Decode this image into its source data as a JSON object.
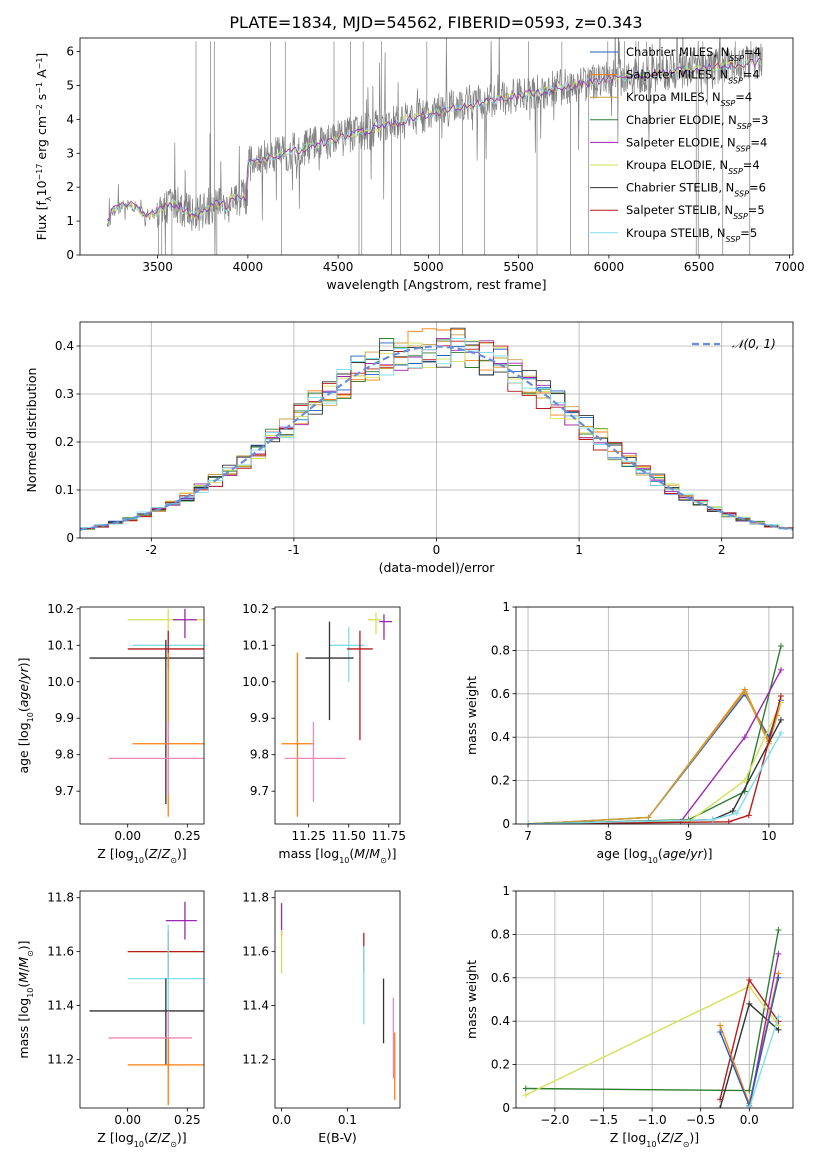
{
  "figure": {
    "title": "PLATE=1834, MJD=54562, FIBERID=0593, z=0.343"
  },
  "series_legend": [
    {
      "name": "Chabrier MILES",
      "nssp": "4",
      "color": "#1f5fbf"
    },
    {
      "name": "Salpeter MILES",
      "nssp": "4",
      "color": "#ff7f0e"
    },
    {
      "name": "Kroupa MILES",
      "nssp": "4",
      "color": "#c8a040"
    },
    {
      "name": "Chabrier ELODIE",
      "nssp": "3",
      "color": "#2e7d32"
    },
    {
      "name": "Salpeter ELODIE",
      "nssp": "4",
      "color": "#9c27b0"
    },
    {
      "name": "Kroupa ELODIE",
      "nssp": "4",
      "color": "#d4e157"
    },
    {
      "name": "Chabrier STELIB",
      "nssp": "6",
      "color": "#333333"
    },
    {
      "name": "Salpeter STELIB",
      "nssp": "5",
      "color": "#b71c1c"
    },
    {
      "name": "Kroupa STELIB",
      "nssp": "5",
      "color": "#80deea"
    }
  ],
  "chart_data": [
    {
      "id": "spectrum",
      "type": "line",
      "xlabel": "wavelength [Angstrom, rest frame]",
      "ylabel": "Flux [f",
      "xlim": [
        3070,
        7020
      ],
      "ylim": [
        0,
        6.4
      ],
      "xticks": [
        3500,
        4000,
        4500,
        5000,
        5500,
        6000,
        6500,
        7000
      ],
      "yticks": [
        0,
        1,
        2,
        3,
        4,
        5,
        6
      ],
      "spectrum_range": [
        3220,
        6850
      ],
      "legend_position": "upper right",
      "grid": false
    },
    {
      "id": "residuals",
      "type": "histogram",
      "xlabel": "(data-model)/error",
      "ylabel": "Normed distribution",
      "xlim": [
        -2.5,
        2.5
      ],
      "ylim": [
        0,
        0.45
      ],
      "xticks": [
        -2,
        -1,
        0,
        1,
        2
      ],
      "yticks": [
        0.0,
        0.1,
        0.2,
        0.3,
        0.4
      ],
      "grid": true,
      "reference_curve": {
        "name": "𝒩(0, 1)",
        "mu": 0,
        "sigma": 1,
        "color": "#6a8fd8"
      },
      "legend_position": "upper right"
    },
    {
      "id": "age_vs_z",
      "type": "errorbar",
      "xlabel": "Z [log",
      "ylabel": "age  [log",
      "xlim": [
        -0.2,
        0.32
      ],
      "ylim": [
        9.61,
        10.205
      ],
      "xticks": [
        0.0,
        0.25
      ],
      "xtick_labels": [
        "0.00",
        "0.25"
      ],
      "yticks": [
        9.7,
        9.8,
        9.9,
        10.0,
        10.1,
        10.2
      ],
      "ytick_labels": [
        "9.7",
        "9.8",
        "9.9",
        "10.0",
        "10.1",
        "10.2"
      ],
      "grid": false,
      "points": [
        {
          "series": "Kroupa ELODIE",
          "x": 0.17,
          "xerr": [
            0.17,
            0.17
          ],
          "y": 10.17,
          "yerr": [
            0.05,
            0.03
          ]
        },
        {
          "series": "Salpeter ELODIE",
          "x": 0.24,
          "xerr": [
            0.05,
            0.05
          ],
          "y": 10.17,
          "yerr": [
            0.05,
            0.03
          ]
        },
        {
          "series": "Kroupa STELIB",
          "x": 0.17,
          "xerr": [
            0.15,
            0.15
          ],
          "y": 10.1,
          "yerr": [
            0.03,
            0.03
          ]
        },
        {
          "series": "Salpeter STELIB",
          "x": 0.17,
          "xerr": [
            0.17,
            0.17
          ],
          "y": 10.09,
          "yerr": [
            0.05,
            0.05
          ]
        },
        {
          "series": "Chabrier STELIB",
          "x": 0.16,
          "xerr": [
            0.32,
            0.22
          ],
          "y": 10.065,
          "yerr": [
            0.4,
            0.05
          ]
        },
        {
          "series": "Salpeter MILES",
          "x": 0.17,
          "xerr": [
            0.15,
            0.15
          ],
          "y": 9.83,
          "yerr": [
            0.2,
            0.25
          ]
        },
        {
          "series": "Pink",
          "x": 0.17,
          "xerr": [
            0.25,
            0.2
          ],
          "y": 9.79,
          "yerr": [
            0.1,
            0.1
          ]
        }
      ]
    },
    {
      "id": "age_vs_mass",
      "type": "errorbar",
      "xlabel": "mass [log",
      "ylabel": "",
      "xlim": [
        11.04,
        11.82
      ],
      "ylim": [
        9.61,
        10.205
      ],
      "xticks": [
        11.25,
        11.5,
        11.75
      ],
      "xtick_labels": [
        "11.25",
        "11.50",
        "11.75"
      ],
      "yticks": [
        9.7,
        9.8,
        9.9,
        10.0,
        10.1,
        10.2
      ],
      "ytick_labels": [
        "9.7",
        "9.8",
        "9.9",
        "10.0",
        "10.1",
        "10.2"
      ],
      "grid": false,
      "points": [
        {
          "series": "Kroupa ELODIE",
          "x": 11.67,
          "xerr": [
            0.05,
            0.03
          ],
          "y": 10.17,
          "yerr": [
            0.04,
            0.02
          ]
        },
        {
          "series": "Salpeter ELODIE",
          "x": 11.72,
          "xerr": [
            0.03,
            0.05
          ],
          "y": 10.165,
          "yerr": [
            0.05,
            0.02
          ]
        },
        {
          "series": "Kroupa STELIB",
          "x": 11.5,
          "xerr": [
            0.12,
            0.1
          ],
          "y": 10.1,
          "yerr": [
            0.1,
            0.05
          ]
        },
        {
          "series": "Salpeter STELIB",
          "x": 11.57,
          "xerr": [
            0.08,
            0.08
          ],
          "y": 10.09,
          "yerr": [
            0.25,
            0.05
          ]
        },
        {
          "series": "Chabrier STELIB",
          "x": 11.38,
          "xerr": [
            0.15,
            0.15
          ],
          "y": 10.065,
          "yerr": [
            0.17,
            0.1
          ]
        },
        {
          "series": "Salpeter MILES",
          "x": 11.18,
          "xerr": [
            0.1,
            0.1
          ],
          "y": 9.83,
          "yerr": [
            0.2,
            0.25
          ]
        },
        {
          "series": "Pink",
          "x": 11.28,
          "xerr": [
            0.18,
            0.2
          ],
          "y": 9.79,
          "yerr": [
            0.12,
            0.1
          ]
        }
      ]
    },
    {
      "id": "weight_vs_age",
      "type": "line",
      "xlabel": "age  [log",
      "ylabel": "mass weight",
      "xlim": [
        6.85,
        10.3
      ],
      "ylim": [
        0,
        1.0
      ],
      "xticks": [
        7,
        8,
        9,
        10
      ],
      "yticks": [
        0.0,
        0.2,
        0.4,
        0.6,
        0.8,
        1.0
      ],
      "grid": true,
      "series": [
        {
          "name": "Chabrier MILES",
          "x": [
            7.0,
            8.5,
            9.7,
            10.0,
            10.15
          ],
          "y": [
            0.0,
            0.03,
            0.6,
            0.4,
            0.57
          ]
        },
        {
          "name": "Salpeter MILES",
          "x": [
            7.0,
            8.5,
            9.7,
            10.0,
            10.1
          ],
          "y": [
            0.0,
            0.03,
            0.62,
            0.38,
            0.5
          ]
        },
        {
          "name": "Kroupa MILES",
          "x": [
            7.0,
            8.5,
            9.7,
            10.0,
            10.15
          ],
          "y": [
            0.0,
            0.03,
            0.61,
            0.37,
            0.56
          ]
        },
        {
          "name": "Chabrier ELODIE",
          "x": [
            7.0,
            9.0,
            9.7,
            10.15
          ],
          "y": [
            0.0,
            0.02,
            0.15,
            0.82
          ]
        },
        {
          "name": "Salpeter ELODIE",
          "x": [
            7.0,
            8.9,
            9.7,
            10.15
          ],
          "y": [
            0.0,
            0.01,
            0.4,
            0.71
          ]
        },
        {
          "name": "Kroupa ELODIE",
          "x": [
            7.0,
            9.0,
            9.7,
            10.15
          ],
          "y": [
            0.0,
            0.01,
            0.2,
            0.56
          ]
        },
        {
          "name": "Chabrier STELIB",
          "x": [
            7.0,
            9.3,
            9.55,
            10.15
          ],
          "y": [
            0.0,
            0.02,
            0.06,
            0.48
          ]
        },
        {
          "name": "Salpeter STELIB",
          "x": [
            7.0,
            9.5,
            9.75,
            10.15
          ],
          "y": [
            0.0,
            0.01,
            0.04,
            0.59
          ]
        },
        {
          "name": "Kroupa STELIB",
          "x": [
            7.0,
            9.3,
            9.6,
            10.15
          ],
          "y": [
            0.0,
            0.02,
            0.05,
            0.42
          ]
        }
      ]
    },
    {
      "id": "mass_vs_z",
      "type": "errorbar",
      "xlabel": "Z [log",
      "ylabel": "mass [log",
      "xlim": [
        -0.2,
        0.32
      ],
      "ylim": [
        11.02,
        11.825
      ],
      "xticks": [
        0.0,
        0.25
      ],
      "xtick_labels": [
        "0.00",
        "0.25"
      ],
      "yticks": [
        11.2,
        11.4,
        11.6,
        11.8
      ],
      "ytick_labels": [
        "11.2",
        "11.4",
        "11.6",
        "11.8"
      ],
      "grid": false,
      "points": [
        {
          "series": "Salpeter ELODIE",
          "x": 0.24,
          "xerr": [
            0.08,
            0.05
          ],
          "y": 11.715,
          "yerr": [
            0.07,
            0.07
          ]
        },
        {
          "series": "Kroupa ELODIE",
          "x": 0.17,
          "xerr": [
            0.17,
            0.17
          ],
          "y": 11.6,
          "yerr": [
            0.08,
            0.08
          ]
        },
        {
          "series": "Salpeter STELIB",
          "x": 0.17,
          "xerr": [
            0.17,
            0.17
          ],
          "y": 11.6,
          "yerr": [
            0.1,
            0.08
          ]
        },
        {
          "series": "Kroupa STELIB",
          "x": 0.17,
          "xerr": [
            0.17,
            0.17
          ],
          "y": 11.5,
          "yerr": [
            0.2,
            0.2
          ]
        },
        {
          "series": "Chabrier STELIB",
          "x": 0.16,
          "xerr": [
            0.32,
            0.22
          ],
          "y": 11.38,
          "yerr": [
            0.2,
            0.12
          ]
        },
        {
          "series": "Pink",
          "x": 0.17,
          "xerr": [
            0.25,
            0.1
          ],
          "y": 11.28,
          "yerr": [
            0.13,
            0.1
          ]
        },
        {
          "series": "Salpeter MILES",
          "x": 0.17,
          "xerr": [
            0.17,
            0.17
          ],
          "y": 11.18,
          "yerr": [
            0.15,
            0.1
          ]
        }
      ]
    },
    {
      "id": "mass_vs_ebv",
      "type": "errorbar",
      "xlabel": "E(B-V)",
      "ylabel": "",
      "xlim": [
        -0.01,
        0.18
      ],
      "ylim": [
        11.02,
        11.825
      ],
      "xticks": [
        0.0,
        0.1
      ],
      "xtick_labels": [
        "0.0",
        "0.1"
      ],
      "yticks": [
        11.2,
        11.4,
        11.6,
        11.8
      ],
      "ytick_labels": [
        "11.2",
        "11.4",
        "11.6",
        "11.8"
      ],
      "grid": false,
      "points": [
        {
          "series": "Salpeter ELODIE",
          "x": 0.0,
          "xerr": [
            0,
            0
          ],
          "y": 11.72,
          "yerr": [
            0.06,
            0.06
          ]
        },
        {
          "series": "Kroupa ELODIE",
          "x": 0.0,
          "xerr": [
            0,
            0
          ],
          "y": 11.6,
          "yerr": [
            0.08,
            0.08
          ]
        },
        {
          "series": "Salpeter STELIB",
          "x": 0.125,
          "xerr": [
            0,
            0
          ],
          "y": 11.6,
          "yerr": [
            0.08,
            0.07
          ]
        },
        {
          "series": "Kroupa STELIB",
          "x": 0.125,
          "xerr": [
            0,
            0
          ],
          "y": 11.5,
          "yerr": [
            0.17,
            0.12
          ]
        },
        {
          "series": "Chabrier STELIB",
          "x": 0.155,
          "xerr": [
            0,
            0
          ],
          "y": 11.38,
          "yerr": [
            0.12,
            0.12
          ]
        },
        {
          "series": "Pink",
          "x": 0.17,
          "xerr": [
            0,
            0
          ],
          "y": 11.28,
          "yerr": [
            0.15,
            0.15
          ]
        },
        {
          "series": "Salpeter MILES",
          "x": 0.172,
          "xerr": [
            0,
            0
          ],
          "y": 11.2,
          "yerr": [
            0.15,
            0.1
          ]
        }
      ]
    },
    {
      "id": "weight_vs_z",
      "type": "line",
      "xlabel": "Z [log",
      "ylabel": "mass weight",
      "xlim": [
        -2.4,
        0.45
      ],
      "ylim": [
        0,
        1.0
      ],
      "xticks": [
        -2.0,
        -1.5,
        -1.0,
        -0.5,
        0.0
      ],
      "xtick_labels": [
        "−2.0",
        "−1.5",
        "−1.0",
        "−0.5",
        "0.0"
      ],
      "yticks": [
        0.0,
        0.2,
        0.4,
        0.6,
        0.8,
        1.0
      ],
      "grid": true,
      "series": [
        {
          "name": "Chabrier ELODIE",
          "x": [
            -2.3,
            0.0,
            0.3
          ],
          "y": [
            0.09,
            0.08,
            0.82
          ]
        },
        {
          "name": "Kroupa ELODIE",
          "x": [
            -2.3,
            0.0,
            0.3
          ],
          "y": [
            0.06,
            0.56,
            0.38
          ]
        },
        {
          "name": "Chabrier STELIB",
          "x": [
            -0.3,
            0.0,
            0.3
          ],
          "y": [
            0.0,
            0.48,
            0.36
          ]
        },
        {
          "name": "Salpeter STELIB",
          "x": [
            -0.3,
            0.0,
            0.3
          ],
          "y": [
            0.04,
            0.59,
            0.4
          ]
        },
        {
          "name": "Salpeter MILES",
          "x": [
            -0.3,
            0.0,
            0.3
          ],
          "y": [
            0.38,
            0.02,
            0.62
          ]
        },
        {
          "name": "Salpeter ELODIE",
          "x": [
            0.0,
            0.3
          ],
          "y": [
            0.0,
            0.71
          ]
        },
        {
          "name": "Chabrier MILES",
          "x": [
            -0.3,
            0.0,
            0.3
          ],
          "y": [
            0.35,
            0.01,
            0.6
          ]
        },
        {
          "name": "Kroupa STELIB",
          "x": [
            0.0,
            0.3
          ],
          "y": [
            0.0,
            0.42
          ]
        }
      ]
    }
  ]
}
